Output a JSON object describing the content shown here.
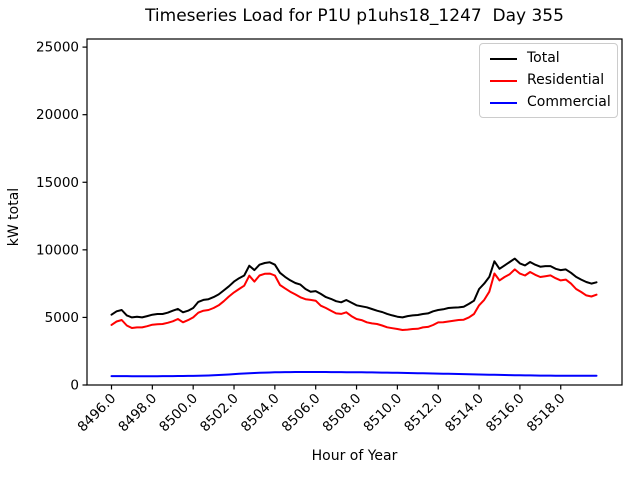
{
  "figure": {
    "title": "Timeseries Load for P1U p1uhs18_1247  Day 355",
    "xlabel": "Hour of Year",
    "ylabel": "kW total",
    "background_color": "#ffffff"
  },
  "chart_data": {
    "type": "line",
    "title": "Timeseries Load for P1U p1uhs18_1247  Day 355",
    "xlabel": "Hour of Year",
    "ylabel": "kW total",
    "x_start": 8496.0,
    "x_step": 0.25,
    "xticks": [
      {
        "v": 8496,
        "label": "8496.0"
      },
      {
        "v": 8498,
        "label": "8498.0"
      },
      {
        "v": 8500,
        "label": "8500.0"
      },
      {
        "v": 8502,
        "label": "8502.0"
      },
      {
        "v": 8504,
        "label": "8504.0"
      },
      {
        "v": 8506,
        "label": "8506.0"
      },
      {
        "v": 8508,
        "label": "8508.0"
      },
      {
        "v": 8510,
        "label": "8510.0"
      },
      {
        "v": 8512,
        "label": "8512.0"
      },
      {
        "v": 8514,
        "label": "8514.0"
      },
      {
        "v": 8516,
        "label": "8516.0"
      },
      {
        "v": 8518,
        "label": "8518.0"
      }
    ],
    "yticks": [
      {
        "v": 0,
        "label": "0"
      },
      {
        "v": 5000,
        "label": "5000"
      },
      {
        "v": 10000,
        "label": "10000"
      },
      {
        "v": 15000,
        "label": "15000"
      },
      {
        "v": 20000,
        "label": "20000"
      },
      {
        "v": 25000,
        "label": "25000"
      }
    ],
    "layout": {
      "grid": false,
      "legend_position": "upper right",
      "xlim": [
        8494.8,
        8521.0
      ],
      "ylim": [
        0,
        25600
      ],
      "box": {
        "l": 87,
        "t": 39,
        "r": 622,
        "b": 385
      },
      "xtick_rotation": 45
    },
    "series": [
      {
        "name": "Total",
        "color": "#000000",
        "values": [
          5200,
          5450,
          5550,
          5150,
          5000,
          5050,
          5000,
          5100,
          5200,
          5250,
          5250,
          5350,
          5500,
          5630,
          5380,
          5500,
          5700,
          6150,
          6300,
          6350,
          6500,
          6700,
          7000,
          7300,
          7650,
          7900,
          8100,
          8830,
          8500,
          8900,
          9030,
          9080,
          8900,
          8300,
          8000,
          7750,
          7550,
          7430,
          7100,
          6900,
          6950,
          6740,
          6500,
          6370,
          6200,
          6120,
          6290,
          6100,
          5900,
          5820,
          5750,
          5620,
          5500,
          5400,
          5260,
          5150,
          5050,
          5000,
          5100,
          5150,
          5180,
          5250,
          5300,
          5450,
          5550,
          5600,
          5700,
          5730,
          5745,
          5790,
          6000,
          6240,
          7100,
          7500,
          8000,
          9150,
          8600,
          8850,
          9100,
          9350,
          9000,
          8850,
          9100,
          8900,
          8750,
          8800,
          8800,
          8600,
          8500,
          8550,
          8300,
          8000,
          7800,
          7620,
          7500,
          7600
        ]
      },
      {
        "name": "Residential",
        "color": "#ff0000",
        "values": [
          4450,
          4700,
          4810,
          4400,
          4220,
          4260,
          4260,
          4350,
          4465,
          4500,
          4510,
          4600,
          4710,
          4880,
          4640,
          4800,
          5000,
          5350,
          5500,
          5550,
          5700,
          5900,
          6200,
          6550,
          6850,
          7100,
          7350,
          8090,
          7650,
          8100,
          8230,
          8240,
          8100,
          7400,
          7150,
          6900,
          6700,
          6490,
          6350,
          6300,
          6240,
          5870,
          5700,
          5500,
          5300,
          5260,
          5380,
          5100,
          4880,
          4800,
          4640,
          4560,
          4510,
          4400,
          4270,
          4200,
          4140,
          4070,
          4100,
          4140,
          4160,
          4260,
          4300,
          4440,
          4630,
          4650,
          4700,
          4760,
          4810,
          4830,
          5000,
          5254,
          5900,
          6300,
          6900,
          8250,
          7740,
          7990,
          8200,
          8550,
          8240,
          8100,
          8360,
          8150,
          7990,
          8050,
          8110,
          7900,
          7740,
          7800,
          7500,
          7100,
          6880,
          6630,
          6550,
          6680
        ]
      },
      {
        "name": "Commercial",
        "color": "#0000ff",
        "values": [
          660,
          658,
          656,
          655,
          654,
          653,
          652,
          652,
          653,
          654,
          656,
          658,
          660,
          663,
          666,
          670,
          675,
          682,
          692,
          705,
          720,
          738,
          758,
          780,
          803,
          826,
          848,
          868,
          886,
          902,
          916,
          928,
          938,
          946,
          952,
          957,
          960,
          962,
          963,
          963,
          962,
          961,
          959,
          957,
          955,
          952,
          949,
          946,
          942,
          938,
          934,
          930,
          925,
          920,
          915,
          909,
          903,
          897,
          890,
          883,
          876,
          869,
          861,
          853,
          845,
          837,
          829,
          820,
          812,
          803,
          795,
          786,
          778,
          770,
          762,
          754,
          746,
          739,
          732,
          725,
          719,
          713,
          708,
          703,
          699,
          695,
          692,
          690,
          688,
          687,
          686,
          686,
          686,
          687,
          688,
          690
        ]
      }
    ]
  }
}
